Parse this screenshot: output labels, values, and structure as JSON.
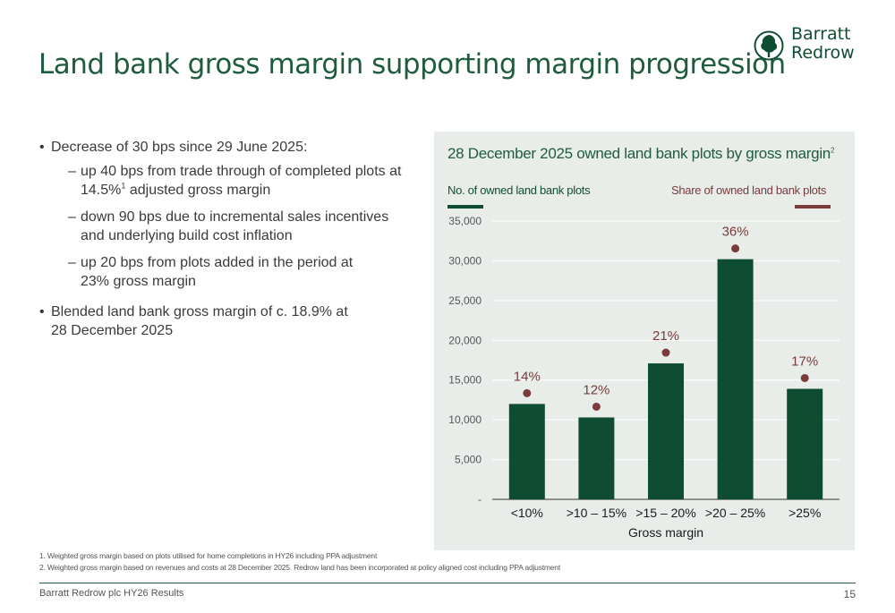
{
  "title": "Land bank gross margin supporting margin progression",
  "logo": {
    "line1": "Barratt",
    "line2": "Redrow"
  },
  "bullets": {
    "b1": "Decrease of 30 bps since 29 June 2025:",
    "s1a": "up 40 bps from trade through of completed plots at",
    "s1b_pre": "14.5%",
    "s1b_sup": "1",
    "s1b_post": " adjusted gross margin",
    "s2a": "down 90 bps due to incremental sales incentives",
    "s2b": "and underlying build cost inflation",
    "s3a": "up 20 bps from plots added in the period at",
    "s3b": "23% gross margin",
    "b2a": "Blended land bank gross margin of c. 18.9% at",
    "b2b": "28 December 2025"
  },
  "chart_title": "28 December 2025 owned land bank plots by gross margin",
  "chart_title_sup": "2",
  "legend": {
    "left": "No. of owned land bank plots",
    "right": "Share of owned land bank plots"
  },
  "colors": {
    "bar": "#0f4d33",
    "share_marker": "#7b3b3b",
    "brand": "#1f5b3f"
  },
  "chart_data": {
    "type": "bar",
    "categories": [
      "<10%",
      ">10 – 15%",
      ">15 – 20%",
      ">20 – 25%",
      ">25%"
    ],
    "series": [
      {
        "name": "No. of owned land bank plots",
        "values": [
          12000,
          10300,
          17100,
          30200,
          13900
        ]
      },
      {
        "name": "Share of owned land bank plots",
        "values": [
          14,
          12,
          21,
          36,
          17
        ],
        "labels": [
          "14%",
          "12%",
          "21%",
          "36%",
          "17%"
        ]
      }
    ],
    "xlabel": "Gross margin",
    "ylabel": "",
    "ylim": [
      0,
      35000
    ],
    "yticks": [
      0,
      5000,
      10000,
      15000,
      20000,
      25000,
      30000,
      35000
    ],
    "ytick_labels": [
      "-",
      "5,000",
      "10,000",
      "15,000",
      "20,000",
      "25,000",
      "30,000",
      "35,000"
    ],
    "grid": true
  },
  "footnotes": {
    "f1": "1.  Weighted gross margin based on plots utilised for home completions in HY26 including PPA adjustment",
    "f2": "2. Weighted gross margin based on revenues and costs at 28 December 2025. Redrow land has been incorporated at policy aligned cost including PPA adjustment"
  },
  "footer": {
    "left": "Barratt Redrow plc  HY26 Results",
    "page": "15"
  }
}
